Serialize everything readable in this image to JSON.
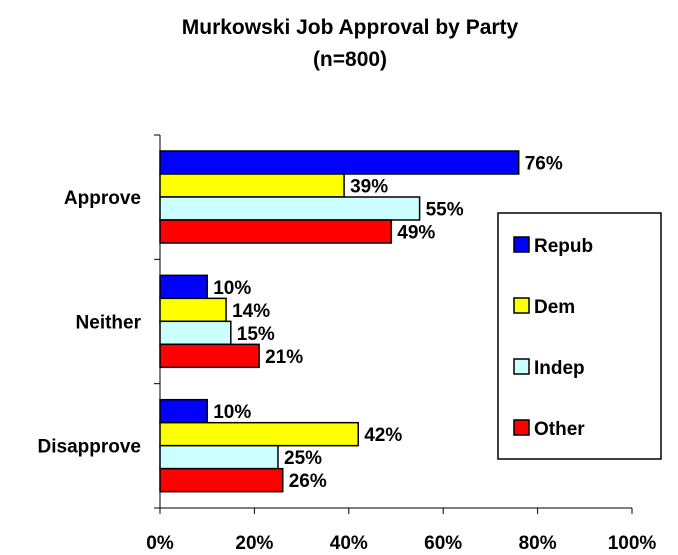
{
  "chart_data": {
    "type": "bar",
    "orientation": "horizontal",
    "title": "Murkowski Job Approval by Party",
    "subtitle": "(n=800)",
    "categories": [
      "Approve",
      "Neither",
      "Disapprove"
    ],
    "series": [
      {
        "name": "Repub",
        "color": "#0000ff",
        "values": [
          76,
          10,
          10
        ],
        "labels": [
          "76%",
          "10%",
          "10%"
        ]
      },
      {
        "name": "Dem",
        "color": "#ffff00",
        "values": [
          39,
          14,
          42
        ],
        "labels": [
          "39%",
          "14%",
          "42%"
        ]
      },
      {
        "name": "Indep",
        "color": "#ccffff",
        "values": [
          55,
          15,
          25
        ],
        "labels": [
          "55%",
          "15%",
          "25%"
        ]
      },
      {
        "name": "Other",
        "color": "#ff0000",
        "values": [
          49,
          21,
          26
        ],
        "labels": [
          "49%",
          "21%",
          "26%"
        ]
      }
    ],
    "xlim": [
      0,
      100
    ],
    "xticks": [
      0,
      20,
      40,
      60,
      80,
      100
    ],
    "xtick_labels": [
      "0%",
      "20%",
      "40%",
      "60%",
      "80%",
      "100%"
    ],
    "grid": false,
    "legend_position": "right"
  }
}
